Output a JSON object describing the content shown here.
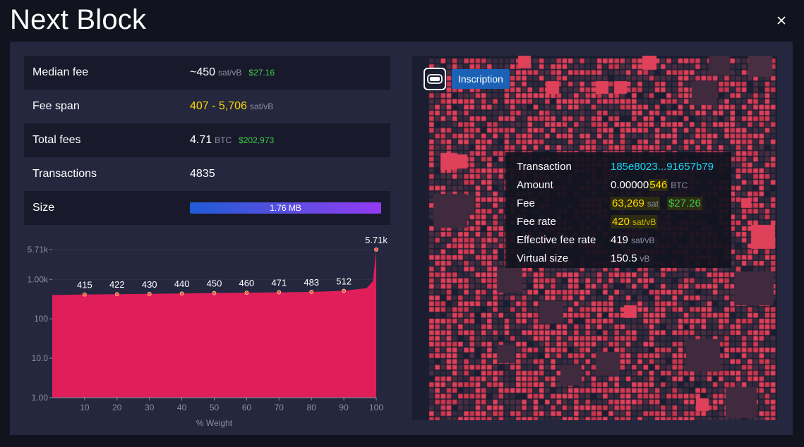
{
  "title": "Next Block",
  "stats": {
    "median_fee": {
      "label": "Median fee",
      "value": "~450",
      "unit": "sat/vB",
      "fiat": "$27.16"
    },
    "fee_span": {
      "label": "Fee span",
      "value": "407 - 5,706",
      "unit": "sat/vB"
    },
    "total_fees": {
      "label": "Total fees",
      "value": "4.71",
      "unit": "BTC",
      "fiat": "$202,973"
    },
    "transactions": {
      "label": "Transactions",
      "value": "4835"
    },
    "size": {
      "label": "Size",
      "value": "1.76 MB",
      "fill_percent": 100
    }
  },
  "inscription_label": "Inscription",
  "tooltip": {
    "transaction": {
      "label": "Transaction",
      "value": "185e8023...91657b79"
    },
    "amount": {
      "label": "Amount",
      "prefix": "0.00000",
      "highlight": "546",
      "unit": "BTC"
    },
    "fee": {
      "label": "Fee",
      "value": "63,269",
      "unit": "sat",
      "fiat": "$27.26"
    },
    "fee_rate": {
      "label": "Fee rate",
      "value": "420",
      "unit": "sat/vB"
    },
    "effective_fee_rate": {
      "label": "Effective fee rate",
      "value": "419",
      "unit": "sat/vB"
    },
    "virtual_size": {
      "label": "Virtual size",
      "value": "150.5",
      "unit": "vB"
    }
  },
  "chart_data": {
    "type": "area",
    "xlabel": "% Weight",
    "ylabel": "",
    "y_scale": "log",
    "x_ticks": [
      10,
      20,
      30,
      40,
      50,
      60,
      70,
      80,
      90,
      100
    ],
    "y_ticks": [
      "1.00",
      "10.0",
      "100",
      "1.00k",
      "5.71k"
    ],
    "y_tick_values": [
      1,
      10,
      100,
      1000,
      5710
    ],
    "points": [
      {
        "x": 0,
        "y": 400
      },
      {
        "x": 10,
        "y": 415,
        "label": "415"
      },
      {
        "x": 20,
        "y": 422,
        "label": "422"
      },
      {
        "x": 30,
        "y": 430,
        "label": "430"
      },
      {
        "x": 40,
        "y": 440,
        "label": "440"
      },
      {
        "x": 50,
        "y": 450,
        "label": "450"
      },
      {
        "x": 60,
        "y": 460,
        "label": "460"
      },
      {
        "x": 70,
        "y": 471,
        "label": "471"
      },
      {
        "x": 80,
        "y": 483,
        "label": "483"
      },
      {
        "x": 90,
        "y": 512,
        "label": "512"
      },
      {
        "x": 97,
        "y": 600
      },
      {
        "x": 99,
        "y": 900
      },
      {
        "x": 100,
        "y": 5710,
        "label": "5.71k"
      }
    ],
    "fill_color": "#e01e5a",
    "marker_color": "#ff5030"
  },
  "colors": {
    "accent_yellow": "#ffd800",
    "fiat_green": "#3bcc49",
    "link_cyan": "#1bd8f4",
    "block_red": "#e0415a"
  }
}
